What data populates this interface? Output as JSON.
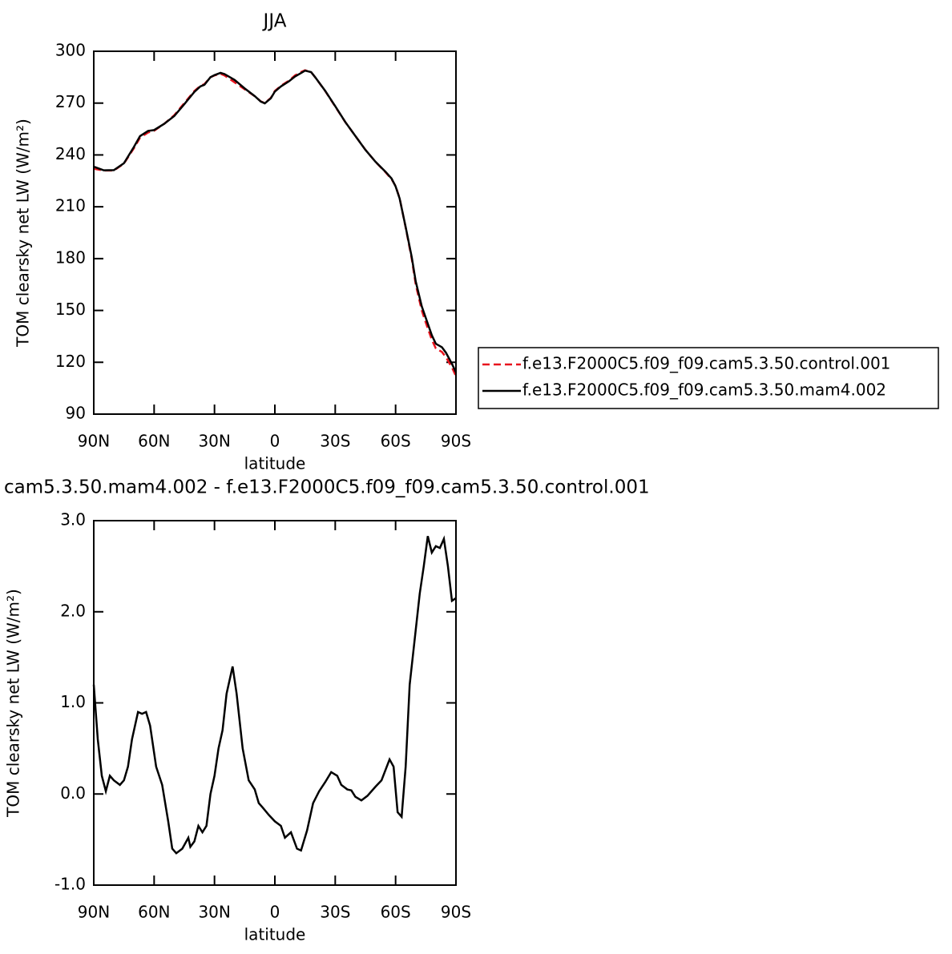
{
  "chart_data": [
    {
      "type": "line",
      "title": "JJA",
      "xlabel": "latitude",
      "ylabel": "TOM clearsky net LW (W/m²)",
      "x": [
        90,
        85,
        80,
        75,
        70,
        67,
        63,
        60,
        55,
        50,
        45,
        40,
        37,
        35,
        32,
        30,
        27,
        25,
        20,
        15,
        10,
        7,
        5,
        2,
        0,
        -3,
        -7,
        -10,
        -13,
        -15,
        -18,
        -20,
        -25,
        -30,
        -35,
        -40,
        -45,
        -50,
        -55,
        -58,
        -60,
        -62,
        -65,
        -68,
        -70,
        -73,
        -75,
        -78,
        -80,
        -83,
        -85,
        -88,
        -90
      ],
      "series": [
        {
          "name": "f.e13.F2000C5.f09_f09.cam5.3.50.control.001",
          "color": "#e8141e",
          "style": "dashed",
          "values": [
            232,
            231,
            231,
            235,
            244,
            250,
            253,
            254,
            258,
            263,
            270,
            277,
            280,
            281,
            285,
            286,
            287,
            286,
            282,
            278,
            274,
            271,
            270,
            273,
            277,
            280,
            283,
            286,
            288,
            289,
            288,
            285,
            277,
            268,
            259,
            251,
            243,
            236,
            230,
            226,
            222,
            215,
            198,
            180,
            165,
            150,
            143,
            133,
            128,
            126,
            123,
            117,
            112
          ]
        },
        {
          "name": "f.e13.F2000C5.f09_f09.cam5.3.50.mam4.002",
          "color": "#000000",
          "style": "solid",
          "values": [
            233.2,
            231.1,
            231.2,
            235.2,
            244.7,
            250.9,
            253.9,
            254.4,
            258.0,
            262.5,
            269.4,
            276.5,
            279.7,
            280.6,
            285,
            286.2,
            287.5,
            286.8,
            283.4,
            278.5,
            274.05,
            270.9,
            269.85,
            272.8,
            276.7,
            279.65,
            282.6,
            285.4,
            287.4,
            288.8,
            287.95,
            285.03,
            277.13,
            268.2,
            259.05,
            250.97,
            242.95,
            236.08,
            230.25,
            226.35,
            221.8,
            214.8,
            198.3,
            181,
            166.8,
            152.4,
            145.7,
            135.65,
            130.72,
            128.75,
            125.6,
            119.12,
            114.15
          ]
        }
      ],
      "xlim": [
        90,
        -90
      ],
      "xticks": [
        {
          "value": 90,
          "label": "90N"
        },
        {
          "value": 60,
          "label": "60N"
        },
        {
          "value": 30,
          "label": "30N"
        },
        0,
        {
          "value": -30,
          "label": "30S"
        },
        {
          "value": -60,
          "label": "60S"
        },
        {
          "value": -90,
          "label": "90S"
        }
      ],
      "ylim": [
        90,
        300
      ],
      "yticks": [
        90,
        120,
        150,
        180,
        210,
        240,
        270,
        300
      ],
      "legend": "right"
    },
    {
      "type": "line",
      "title": "cam5.3.50.mam4.002 - f.e13.F2000C5.f09_f09.cam5.3.50.control.001",
      "xlabel": "latitude",
      "ylabel": "TOM clearsky net LW (W/m²)",
      "x": [
        90,
        88,
        86,
        84,
        82,
        80,
        77,
        75,
        73,
        71,
        68,
        66,
        64,
        62,
        59,
        56,
        53,
        51,
        49,
        46,
        43,
        42,
        40,
        38,
        36,
        34,
        32,
        30,
        28,
        26,
        24,
        21,
        19,
        16,
        13,
        10,
        8,
        6,
        3,
        0,
        -3,
        -5,
        -8,
        -11,
        -13,
        -16,
        -19,
        -22,
        -25,
        -28,
        -31,
        -33,
        -36,
        -38,
        -40,
        -43,
        -46,
        -50,
        -53,
        -57,
        -59,
        -61,
        -63,
        -65,
        -67,
        -70,
        -72,
        -74,
        -76,
        -78,
        -80,
        -82,
        -84,
        -86,
        -88,
        -90
      ],
      "values": [
        1.2,
        0.6,
        0.2,
        0.03,
        0.2,
        0.15,
        0.1,
        0.15,
        0.3,
        0.6,
        0.9,
        0.88,
        0.9,
        0.75,
        0.3,
        0.1,
        -0.3,
        -0.6,
        -0.65,
        -0.6,
        -0.48,
        -0.58,
        -0.52,
        -0.35,
        -0.42,
        -0.35,
        0,
        0.2,
        0.5,
        0.7,
        1.1,
        1.4,
        1.1,
        0.5,
        0.15,
        0.05,
        -0.1,
        -0.15,
        -0.23,
        -0.3,
        -0.35,
        -0.48,
        -0.42,
        -0.6,
        -0.62,
        -0.4,
        -0.1,
        0.03,
        0.13,
        0.24,
        0.2,
        0.1,
        0.05,
        0.04,
        -0.03,
        -0.07,
        -0.02,
        0.08,
        0.15,
        0.38,
        0.3,
        -0.2,
        -0.25,
        0.3,
        1.2,
        1.8,
        2.2,
        2.5,
        2.83,
        2.65,
        2.72,
        2.7,
        2.8,
        2.5,
        2.12,
        2.15
      ],
      "color": "#000000",
      "xlim": [
        90,
        -90
      ],
      "xticks": [
        {
          "value": 90,
          "label": "90N"
        },
        {
          "value": 60,
          "label": "60N"
        },
        {
          "value": 30,
          "label": "30N"
        },
        0,
        {
          "value": -30,
          "label": "30S"
        },
        {
          "value": -60,
          "label": "60S"
        },
        {
          "value": -90,
          "label": "90S"
        }
      ],
      "ylim": [
        -1,
        3
      ],
      "yticks": [
        {
          "value": -1,
          "label": "-1.0"
        },
        {
          "value": 0,
          "label": "0.0"
        },
        {
          "value": 1,
          "label": "1.0"
        },
        {
          "value": 2,
          "label": "2.0"
        },
        {
          "value": 3,
          "label": "3.0"
        }
      ]
    }
  ]
}
